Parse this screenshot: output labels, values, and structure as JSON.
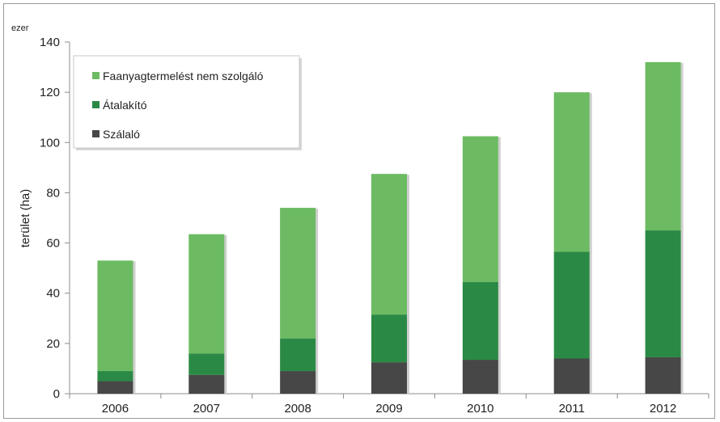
{
  "chart_data": {
    "type": "bar",
    "stacked": true,
    "unit_label": "ezer",
    "ylabel": "terület (ha)",
    "ylim": [
      0,
      140
    ],
    "yticks": [
      0,
      20,
      40,
      60,
      80,
      100,
      120,
      140
    ],
    "grid": false,
    "legend_position": "top-left",
    "categories": [
      "2006",
      "2007",
      "2008",
      "2009",
      "2010",
      "2011",
      "2012"
    ],
    "series": [
      {
        "name": "Szálaló",
        "color": "#474747",
        "values": [
          5,
          7.5,
          9,
          12.5,
          13.5,
          14,
          14.5
        ]
      },
      {
        "name": "Átalakító",
        "color": "#2a8a45",
        "values": [
          4,
          8.5,
          13,
          19,
          31,
          42.5,
          50.5
        ]
      },
      {
        "name": "Faanyagtermelést nem szolgáló",
        "color": "#6cbb62",
        "values": [
          44,
          47.5,
          52,
          56,
          58,
          63.5,
          67
        ]
      }
    ]
  }
}
